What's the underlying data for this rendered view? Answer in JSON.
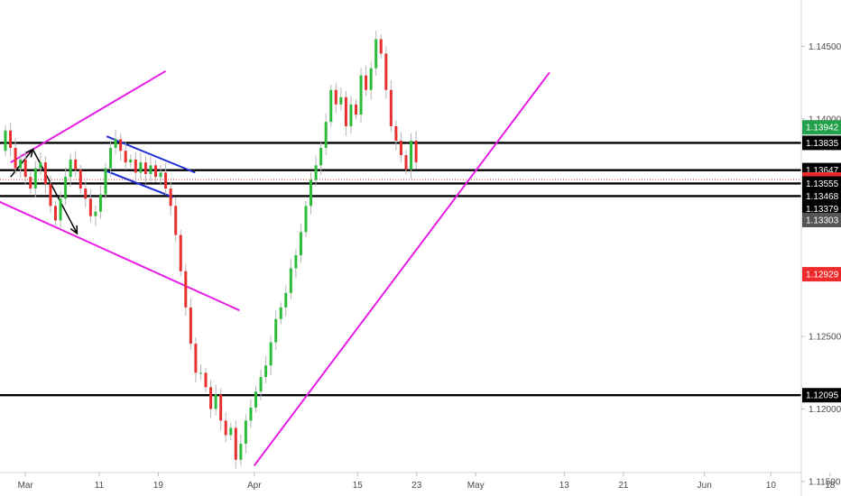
{
  "chart_data": {
    "type": "candlestick",
    "y_axis": {
      "ticks": [
        "1.14500",
        "1.14000",
        "1.12500",
        "1.12000",
        "1.11500"
      ],
      "ylim": [
        1.114,
        1.1482
      ]
    },
    "x_axis": {
      "ticks": [
        "Mar",
        "11",
        "19",
        "Apr",
        "15",
        "23",
        "May",
        "13",
        "21",
        "Jun",
        "10",
        "18"
      ]
    },
    "horizontal_levels": [
      {
        "price": 1.13835,
        "color": "#000000"
      },
      {
        "price": 1.13647,
        "color": "#000000"
      },
      {
        "price": 1.13582,
        "color": "#e04040",
        "style": "dotted"
      },
      {
        "price": 1.13555,
        "color": "#000000"
      },
      {
        "price": 1.13468,
        "color": "#000000"
      },
      {
        "price": 1.12095,
        "color": "#000000"
      }
    ],
    "price_tags": [
      {
        "label": "1.13942",
        "price": 1.13942,
        "bg": "#22a04b"
      },
      {
        "label": "1.13835",
        "price": 1.13835,
        "bg": "#000000"
      },
      {
        "label": "1.13647",
        "price": 1.13647,
        "bg": "#000000"
      },
      {
        "label": "1.13582",
        "price": 1.13582,
        "bg": "#ee2b2b"
      },
      {
        "label": "1.13555",
        "price": 1.13555,
        "bg": "#000000"
      },
      {
        "label": "1.13468",
        "price": 1.13468,
        "bg": "#000000"
      },
      {
        "label": "1.13379",
        "price": 1.13379,
        "bg": "#000000"
      },
      {
        "label": "1.13303",
        "price": 1.13303,
        "bg": "#555555"
      },
      {
        "label": "1.12929",
        "price": 1.12929,
        "bg": "#ee2b2b"
      },
      {
        "label": "1.12095",
        "price": 1.12095,
        "bg": "#000000"
      }
    ],
    "candles": {
      "colors": {
        "up": "#2bbd3a",
        "down": "#e8312f"
      },
      "closes": [
        1.1392,
        1.138,
        1.1366,
        1.1372,
        1.136,
        1.1352,
        1.1366,
        1.137,
        1.1355,
        1.134,
        1.133,
        1.1345,
        1.136,
        1.1372,
        1.1365,
        1.1352,
        1.1345,
        1.1333,
        1.1336,
        1.1348,
        1.1366,
        1.138,
        1.1386,
        1.1378,
        1.137,
        1.1372,
        1.1363,
        1.137,
        1.1362,
        1.1368,
        1.136,
        1.1363,
        1.1352,
        1.134,
        1.132,
        1.1295,
        1.127,
        1.1245,
        1.1225,
        1.1225,
        1.1215,
        1.12,
        1.121,
        1.1192,
        1.1182,
        1.1187,
        1.1165,
        1.1176,
        1.1192,
        1.1201,
        1.1212,
        1.1222,
        1.123,
        1.1246,
        1.1262,
        1.127,
        1.128,
        1.1297,
        1.1306,
        1.1322,
        1.134,
        1.1358,
        1.1368,
        1.138,
        1.1398,
        1.142,
        1.141,
        1.1415,
        1.1395,
        1.141,
        1.1403,
        1.143,
        1.142,
        1.1435,
        1.1455,
        1.1445,
        1.142,
        1.1395,
        1.1385,
        1.1375,
        1.1365,
        1.1385,
        1.137
      ]
    },
    "trendlines": [
      {
        "color": "#e61ee6",
        "points": [
          [
            "2019-02-27",
            1.137
          ],
          [
            "2019-03-20",
            1.1433
          ]
        ]
      },
      {
        "color": "#e61ee6",
        "points": [
          [
            "2019-02-25",
            1.1344
          ],
          [
            "2019-03-30",
            1.1268
          ]
        ]
      },
      {
        "color": "#e61ee6",
        "points": [
          [
            "2019-04-01",
            1.1161
          ],
          [
            "2019-05-11",
            1.1432
          ]
        ]
      },
      {
        "color": "#1f2fd4",
        "points": [
          [
            "2019-03-12",
            1.1388
          ],
          [
            "2019-03-24",
            1.1363
          ]
        ]
      },
      {
        "color": "#1f2fd4",
        "points": [
          [
            "2019-03-12",
            1.1364
          ],
          [
            "2019-03-21",
            1.1346
          ]
        ]
      }
    ],
    "arrows": [
      {
        "color": "#000000",
        "points": [
          [
            "2019-02-27",
            1.136
          ],
          [
            "2019-03-02",
            1.1379
          ],
          [
            "2019-03-08",
            1.1321
          ]
        ]
      }
    ]
  }
}
